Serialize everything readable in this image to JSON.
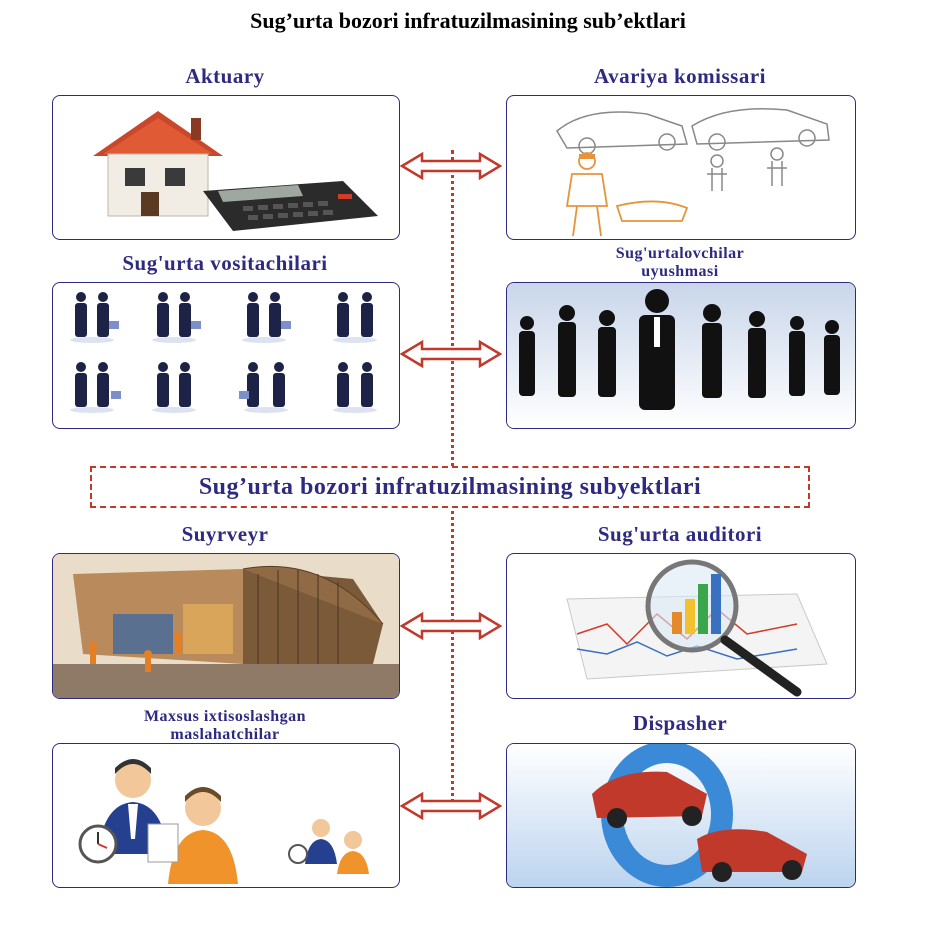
{
  "title": "Sug’urta bozori infratuzilmasining sub’ektlari",
  "center_label": "Sug’urta bozori infratuzilmasining subyektlari",
  "boxes": {
    "aktuary": "Aktuary",
    "avariya": "Avariya komissari",
    "vositachilar": "Sug'urta vositachilari",
    "uyushma_line1": "Sug'urtalovchilar",
    "uyushma_line2": "uyushmasi",
    "suyrveyr": "Suyrveyr",
    "auditor": "Sug'urta auditori",
    "maslahat_line1": "Maxsus ixtisoslashgan",
    "maslahat_line2": "maslahatchilar",
    "dispasher": "Dispasher"
  },
  "colors": {
    "label_text": "#2e2a80",
    "connector": "#c0392b",
    "box_border": "#2e2a80"
  }
}
